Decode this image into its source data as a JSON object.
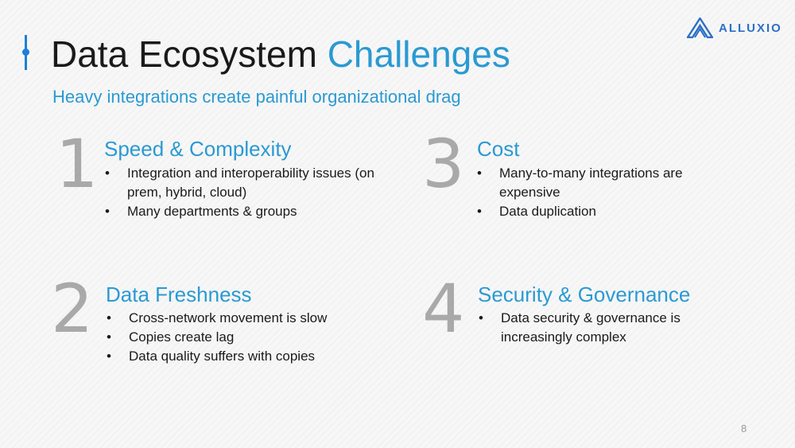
{
  "header": {
    "title_main": "Data Ecosystem",
    "title_highlight": "Challenges",
    "subtitle": "Heavy integrations create painful organizational drag"
  },
  "logo": {
    "text": "ALLUXIO",
    "icon": "alluxio-logo-icon"
  },
  "sections": [
    {
      "number": "1",
      "title": "Speed & Complexity",
      "bullets": [
        "Integration and interoperability issues (on prem, hybrid, cloud)",
        "Many departments & groups"
      ]
    },
    {
      "number": "2",
      "title": "Data Freshness",
      "bullets": [
        "Cross-network movement is slow",
        "Copies create lag",
        "Data quality suffers with copies"
      ]
    },
    {
      "number": "3",
      "title": "Cost",
      "bullets": [
        "Many-to-many integrations are expensive",
        "Data duplication"
      ]
    },
    {
      "number": "4",
      "title": "Security & Governance",
      "bullets": [
        "Data security & governance is increasingly complex"
      ]
    }
  ],
  "footer": {
    "page_number": "8"
  },
  "colors": {
    "accent": "#2a9ad2",
    "accent_bar": "#1f7fd6",
    "number_gray": "#a9a9a9",
    "logo_blue": "#2d6fc6"
  }
}
